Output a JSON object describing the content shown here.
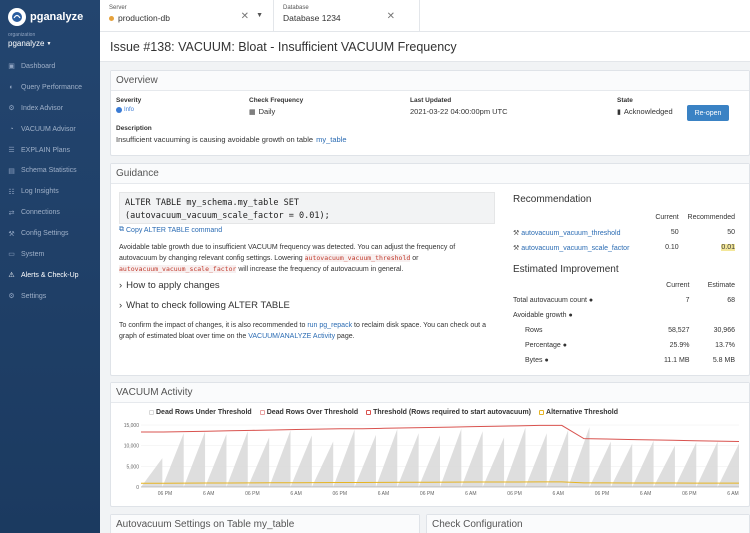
{
  "brand": {
    "name": "pganalyze"
  },
  "org": {
    "label": "organization",
    "name": "pganalyze"
  },
  "nav": [
    {
      "label": "Dashboard",
      "icon": "dashboard-icon",
      "glyph": "▣"
    },
    {
      "label": "Query Performance",
      "icon": "query-performance-icon",
      "glyph": "◐"
    },
    {
      "label": "Index Advisor",
      "icon": "index-advisor-icon",
      "glyph": "⚙"
    },
    {
      "label": "VACUUM Advisor",
      "icon": "vacuum-advisor-icon",
      "glyph": "◔"
    },
    {
      "label": "EXPLAIN Plans",
      "icon": "explain-plans-icon",
      "glyph": "☰"
    },
    {
      "label": "Schema Statistics",
      "icon": "schema-statistics-icon",
      "glyph": "▤"
    },
    {
      "label": "Log Insights",
      "icon": "log-insights-icon",
      "glyph": "☷"
    },
    {
      "label": "Connections",
      "icon": "connections-icon",
      "glyph": "⇄"
    },
    {
      "label": "Config Settings",
      "icon": "config-settings-icon",
      "glyph": "⚒"
    },
    {
      "label": "System",
      "icon": "system-icon",
      "glyph": "▭"
    },
    {
      "label": "Alerts & Check-Up",
      "icon": "alerts-icon",
      "glyph": "⚠",
      "active": true
    },
    {
      "label": "Settings",
      "icon": "settings-icon",
      "glyph": "⚙"
    }
  ],
  "server": {
    "label": "Server",
    "value": "production-db"
  },
  "database": {
    "label": "Database",
    "value": "Database 1234"
  },
  "title": "Issue #138: VACUUM: Bloat - Insufficient VACUUM Frequency",
  "overview": {
    "heading": "Overview",
    "severity_label": "Severity",
    "severity_value": "Info",
    "frequency_label": "Check Frequency",
    "frequency_value": "Daily",
    "updated_label": "Last Updated",
    "updated_value": "2021-03-22 04:00:00pm UTC",
    "state_label": "State",
    "state_value": "Acknowledged",
    "reopen_label": "Re-open",
    "description_label": "Description",
    "description_text": "Insufficient vacuuming is causing avoidable growth on table",
    "description_table": "my_table"
  },
  "guidance": {
    "heading": "Guidance",
    "code_line1": "ALTER TABLE my_schema.my_table SET",
    "code_line2": "(autovacuum_vacuum_scale_factor = 0.01);",
    "copy_label": "Copy ALTER TABLE command",
    "para1_a": "Avoidable table growth due to insufficient VACUUM frequency was detected. You can adjust the frequency of autovacuum by changing relevant config settings. Lowering",
    "para1_code1": "autovacuum_vacuum_threshold",
    "para1_or": "or",
    "para1_code2": "autovacuum_vacuum_scale_factor",
    "para1_b": "will increase the frequency of autovacuum in general.",
    "apply_label": "How to apply changes",
    "check_label": "What to check following ALTER TABLE",
    "para2_a": "To confirm the impact of changes, it is also recommended to",
    "para2_link1": "run pg_repack",
    "para2_b": "to reclaim disk space. You can check out a graph of estimated bloat over time on the",
    "para2_link2": "VACUUM/ANALYZE Activity",
    "para2_c": "page."
  },
  "recommendation": {
    "heading": "Recommendation",
    "col_current": "Current",
    "col_recommended": "Recommended",
    "rows": [
      {
        "name": "autovacuum_vacuum_threshold",
        "current": "50",
        "recommended": "50"
      },
      {
        "name": "autovacuum_vacuum_scale_factor",
        "current": "0.10",
        "recommended": "0.01"
      }
    ]
  },
  "improvement": {
    "heading": "Estimated Improvement",
    "col_current": "Current",
    "col_estimate": "Estimate",
    "total_label": "Total autovacuum count",
    "total_current": "7",
    "total_estimate": "68",
    "growth_label": "Avoidable growth",
    "rows_label": "Rows",
    "rows_current": "58,527",
    "rows_estimate": "30,966",
    "pct_label": "Percentage",
    "pct_current": "25.9%",
    "pct_estimate": "13.7%",
    "bytes_label": "Bytes",
    "bytes_current": "11.1 MB",
    "bytes_estimate": "5.8 MB"
  },
  "vacuum_activity": {
    "heading": "VACUUM Activity"
  },
  "chart_data": {
    "type": "area",
    "legend": [
      "Dead Rows Under Threshold",
      "Dead Rows Over Threshold",
      "Threshold (Rows required to start autovacuum)",
      "Alternative Threshold"
    ],
    "colors": {
      "under": "#d8d8d8",
      "over": "#e8a0a0",
      "threshold": "#d9534f",
      "alternative": "#e6b422"
    },
    "yticks": [
      "15,000",
      "10,000",
      "5,000",
      "0"
    ],
    "ylim": [
      0,
      15000
    ],
    "xticks": [
      "06 PM",
      "6 AM",
      "06 PM",
      "6 AM",
      "06 PM",
      "6 AM",
      "06 PM",
      "6 AM",
      "06 PM",
      "6 AM",
      "06 PM",
      "6 AM",
      "06 PM",
      "6 AM"
    ],
    "threshold": [
      13300,
      13300,
      13400,
      13500,
      13600,
      13700,
      13800,
      13900,
      14000,
      14100,
      14100,
      14200,
      14300,
      14400,
      14500,
      14600,
      14700,
      14800,
      14900,
      14900,
      11700,
      11600,
      11500,
      11400,
      11300,
      11200,
      11100,
      11000
    ],
    "alternative": [
      900,
      920,
      940,
      960,
      980,
      1000,
      1020,
      1040,
      1060,
      1080,
      1100,
      1120,
      1140,
      1160,
      1180,
      1200,
      1210,
      1220,
      1230,
      1240,
      1000,
      990,
      980,
      970,
      960,
      950,
      940,
      930
    ],
    "dead_rows_peaks": [
      7000,
      13000,
      13400,
      12800,
      13500,
      12000,
      13700,
      12500,
      11000,
      13900,
      12600,
      14000,
      13000,
      12500,
      14100,
      13500,
      12000,
      14400,
      13000,
      13800,
      14500,
      11000,
      10500,
      11200,
      10000,
      10800,
      11000,
      10500
    ]
  },
  "bottom": {
    "autovacuum_heading": "Autovacuum Settings on Table my_table",
    "check_config_heading": "Check Configuration"
  }
}
